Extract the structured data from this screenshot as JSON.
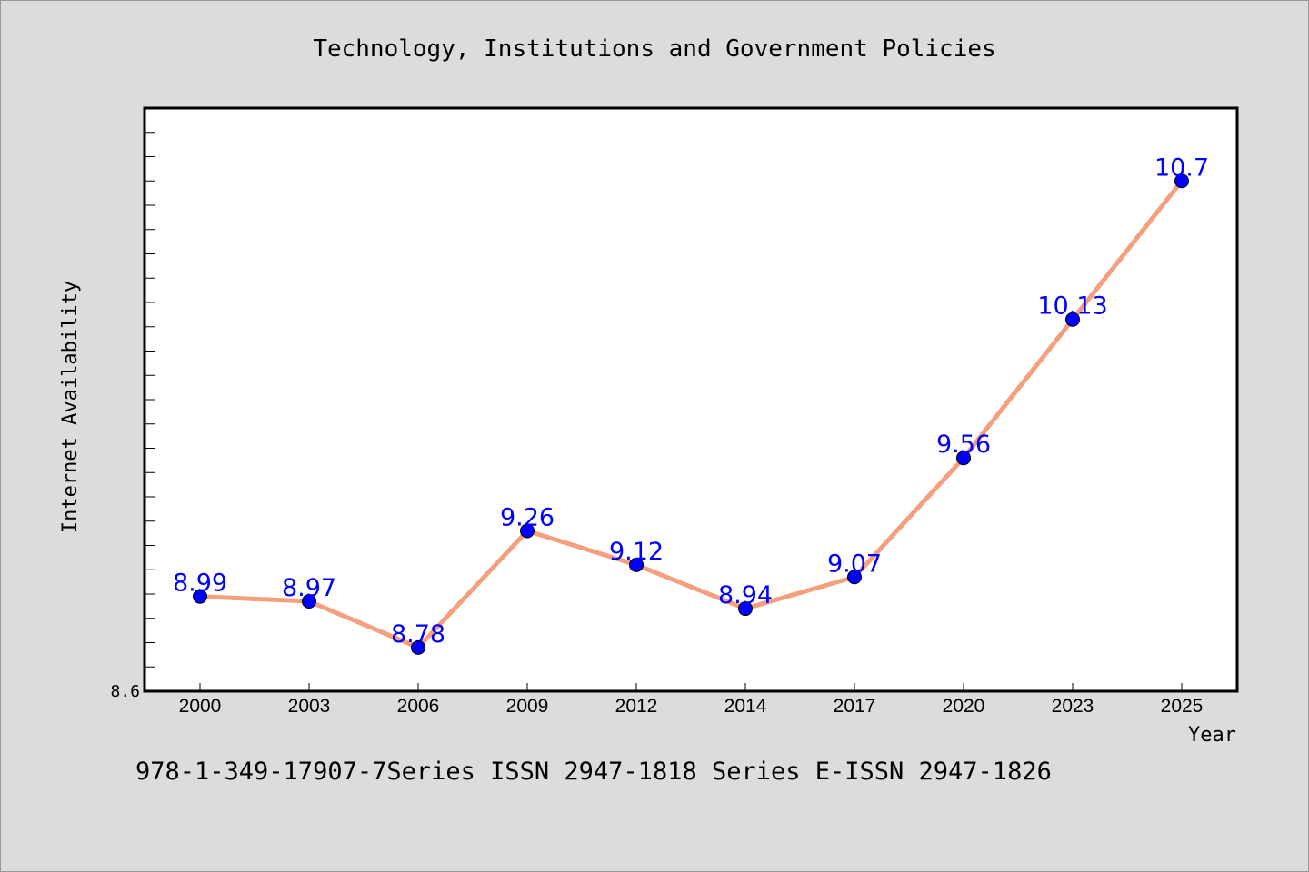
{
  "chart_data": {
    "type": "line",
    "title": "Technology, Institutions and Government Policies",
    "xlabel": "Year",
    "ylabel": "Internet Availability",
    "categories": [
      "2000",
      "2003",
      "2006",
      "2009",
      "2012",
      "2014",
      "2017",
      "2020",
      "2023",
      "2025"
    ],
    "series": [
      {
        "values": [
          8.99,
          8.97,
          8.78,
          9.26,
          9.12,
          8.94,
          9.07,
          9.56,
          10.13,
          10.7
        ],
        "data_labels": [
          "8.99",
          "8.97",
          "8.78",
          "9.26",
          "9.12",
          "8.94",
          "9.07",
          "9.56",
          "10.13",
          "10.7"
        ],
        "line_color": "#f4a07f",
        "marker_color": "#0000ff"
      }
    ],
    "ylim": [
      8.6,
      11.0
    ],
    "y_tick_labels": [
      "8.6"
    ],
    "grid": false,
    "background": "#ffffff"
  },
  "footer_text": "978-1-349-17907-7Series ISSN 2947-1818 Series E-ISSN 2947-1826"
}
